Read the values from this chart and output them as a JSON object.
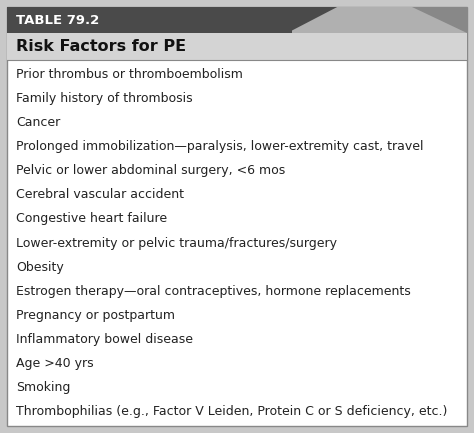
{
  "table_label": "TABLE 79.2",
  "subtitle": "Risk Factors for PE",
  "items": [
    "Prior thrombus or thromboembolism",
    "Family history of thrombosis",
    "Cancer",
    "Prolonged immobilization—paralysis, lower-extremity cast, travel",
    "Pelvic or lower abdominal surgery, <6 mos",
    "Cerebral vascular accident",
    "Congestive heart failure",
    "Lower-extremity or pelvic trauma/fractures/surgery",
    "Obesity",
    "Estrogen therapy—oral contraceptives, hormone replacements",
    "Pregnancy or postpartum",
    "Inflammatory bowel disease",
    "Age >40 yrs",
    "Smoking",
    "Thrombophilias (e.g., Factor V Leiden, Protein C or S deficiency, etc.)"
  ],
  "outer_bg": "#c8c8c8",
  "body_bg": "#ffffff",
  "header_bg": "#4a4a4a",
  "header_bg_right": "#b0b0b0",
  "triangle_color": "#7a7a7a",
  "subheader_bg": "#d4d4d4",
  "border_color": "#888888",
  "header_text_color": "#ffffff",
  "subtitle_text_color": "#111111",
  "item_text_color": "#222222",
  "header_fontsize": 9.5,
  "subtitle_fontsize": 11.5,
  "item_fontsize": 9.0,
  "fig_width": 4.74,
  "fig_height": 4.33,
  "dpi": 100
}
